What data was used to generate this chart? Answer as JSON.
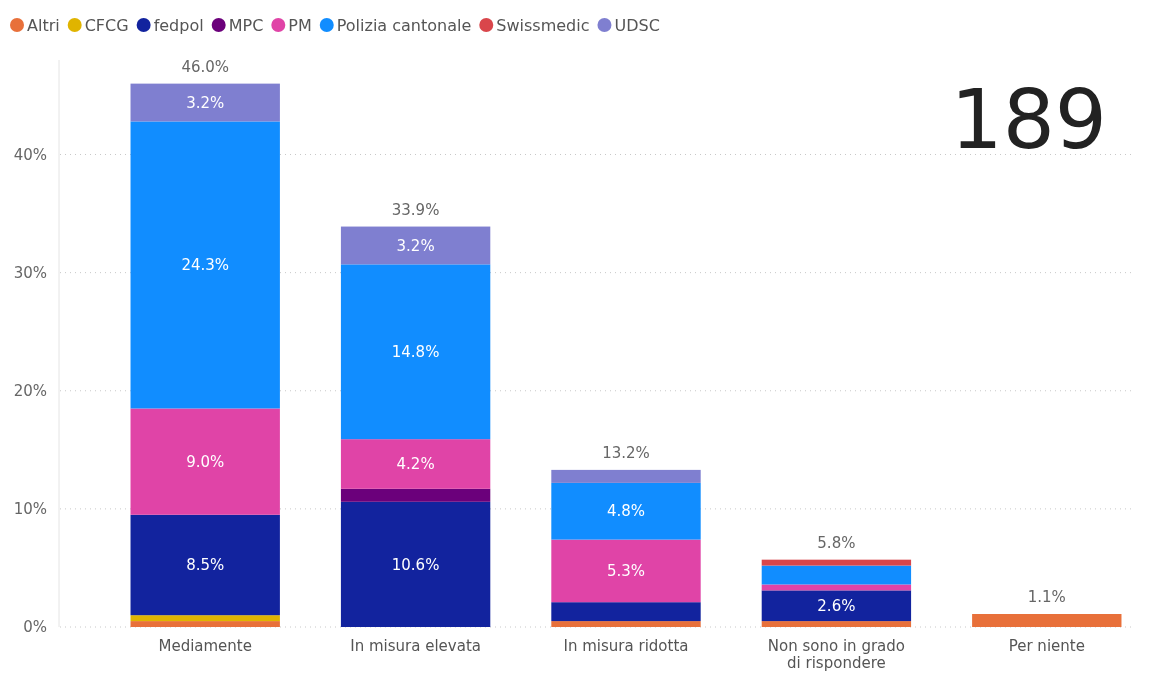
{
  "chart_data": {
    "type": "bar",
    "stacked": true,
    "categories": [
      "Mediamente",
      "In misura elevata",
      "In misura ridotta",
      "Non sono in grado di rispondere",
      "Per niente"
    ],
    "series": [
      {
        "name": "Altri",
        "color": "#e8703a",
        "values": [
          0.5,
          0,
          0.5,
          0.5,
          1.1
        ],
        "value_labels": [
          null,
          null,
          null,
          null,
          null
        ]
      },
      {
        "name": "CFCG",
        "color": "#e0b400",
        "values": [
          0.5,
          0,
          0,
          0,
          0
        ],
        "value_labels": [
          null,
          null,
          null,
          null,
          null
        ]
      },
      {
        "name": "fedpol",
        "color": "#12239e",
        "values": [
          8.5,
          10.6,
          1.6,
          2.6,
          0
        ],
        "value_labels": [
          "8.5%",
          "10.6%",
          null,
          "2.6%",
          null
        ]
      },
      {
        "name": "MPC",
        "color": "#6b007b",
        "values": [
          0,
          1.1,
          0,
          0,
          0
        ],
        "value_labels": [
          null,
          null,
          null,
          null,
          null
        ]
      },
      {
        "name": "PM",
        "color": "#e044a7",
        "values": [
          9.0,
          4.2,
          5.3,
          0.5,
          0
        ],
        "value_labels": [
          "9.0%",
          "4.2%",
          "5.3%",
          null,
          null
        ]
      },
      {
        "name": "Polizia cantonale",
        "color": "#118dff",
        "values": [
          24.3,
          14.8,
          4.8,
          1.6,
          0
        ],
        "value_labels": [
          "24.3%",
          "14.8%",
          "4.8%",
          null,
          null
        ]
      },
      {
        "name": "Swissmedic",
        "color": "#d9464b",
        "values": [
          0,
          0,
          0,
          0.5,
          0
        ],
        "value_labels": [
          null,
          null,
          null,
          null,
          null
        ]
      },
      {
        "name": "UDSC",
        "color": "#7f7fd0",
        "values": [
          3.2,
          3.2,
          1.1,
          0,
          0
        ],
        "value_labels": [
          "3.2%",
          "3.2%",
          null,
          null,
          null
        ]
      }
    ],
    "totals": [
      "46.0%",
      "33.9%",
      "13.2%",
      "5.8%",
      "1.1%"
    ],
    "ylim": [
      0,
      48
    ],
    "yticks": [
      {
        "value": 0,
        "label": "0%"
      },
      {
        "value": 10,
        "label": "10%"
      },
      {
        "value": 20,
        "label": "20%"
      },
      {
        "value": 30,
        "label": "30%"
      },
      {
        "value": 40,
        "label": "40%"
      }
    ],
    "grid": "y",
    "legend": "top left",
    "annotations": [
      "189"
    ]
  }
}
